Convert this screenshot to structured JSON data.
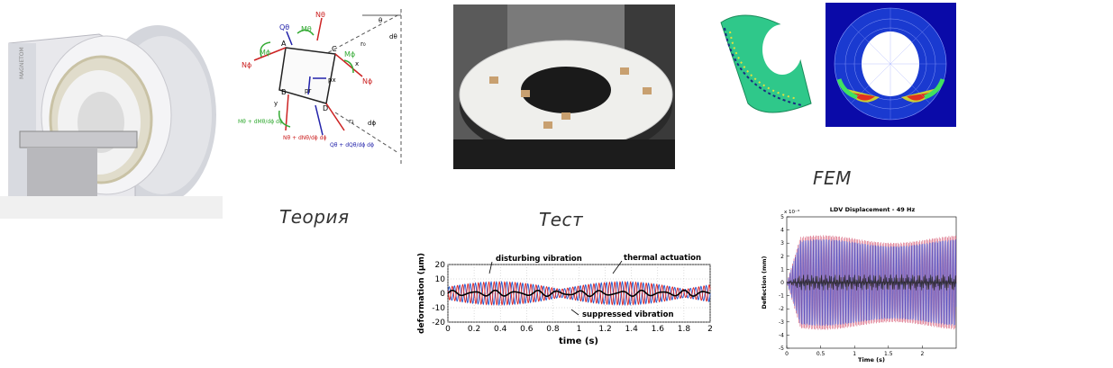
{
  "captions": {
    "theory": "Теория",
    "test": "Тест",
    "fem": "FEM"
  },
  "mri": {
    "brand_text": "MAGNETOM"
  },
  "theory_diagram": {
    "labels": {
      "Q_theta": "Qθ",
      "M_theta": "Mθ",
      "N_phi": "Nϕ",
      "M_phi": "Mϕ",
      "N_theta": "Nθ",
      "A": "A",
      "B": "B",
      "C": "C",
      "D": "D",
      "x": "x",
      "y": "y",
      "z": "z",
      "p_r": "pr",
      "p_x": "px",
      "r0": "r₀",
      "r1": "r₁",
      "theta": "θ",
      "d_theta": "dθ",
      "d_phi": "dϕ",
      "N_theta_dN": "Nθ + dNθ/dϕ dϕ",
      "M_theta_dM": "Mθ + dMθ/dϕ dϕ",
      "Q_theta_dQ": "Qθ + dQθ/dϕ dϕ"
    }
  },
  "chart_data": [
    {
      "type": "line",
      "title": "",
      "xlabel": "time (s)",
      "ylabel": "deformation (µm)",
      "xlim": [
        0,
        2
      ],
      "ylim": [
        -20,
        20
      ],
      "x_ticks": [
        "0",
        "0.2",
        "0.4",
        "0.6",
        "0.8",
        "1",
        "1.2",
        "1.4",
        "1.6",
        "1.8",
        "2"
      ],
      "y_ticks": [
        "20",
        "10",
        "0",
        "-10",
        "-20"
      ],
      "annotations": [
        "disturbing vibration",
        "thermal actuation",
        "suppressed vibration"
      ],
      "series": [
        {
          "name": "disturbing vibration",
          "color": "#2255cc",
          "frequency_hz": 25,
          "amplitude": 8,
          "modulation_period_s": 0.95
        },
        {
          "name": "thermal actuation",
          "color": "#dd2222",
          "frequency_hz": 25,
          "amplitude": 8,
          "modulation_period_s": 0.95
        },
        {
          "name": "suppressed vibration",
          "color": "#000000",
          "frequency_hz": 25,
          "amplitude": 1.5
        }
      ]
    },
    {
      "type": "line",
      "title": "LDV Displacement - 49 Hz",
      "xlabel": "Time (s)",
      "ylabel": "Deflection (mm)",
      "exponent_label": "x 10⁻³",
      "xlim": [
        0,
        2.5
      ],
      "ylim": [
        -5,
        5
      ],
      "x_ticks": [
        "0",
        "0.5",
        "1",
        "1.5",
        "2"
      ],
      "y_ticks": [
        "5",
        "4",
        "3",
        "2",
        "1",
        "0",
        "-1",
        "-2",
        "-3",
        "-4",
        "-5"
      ],
      "series": [
        {
          "color": "#d04060",
          "envelope": 3.6,
          "rise_time_s": 0.2
        },
        {
          "color": "#3344cc",
          "envelope": 3.3
        },
        {
          "color": "#222222",
          "envelope": 0.6
        }
      ]
    }
  ],
  "colors": {
    "fem_bg": "#0a0aa8",
    "fem_shell": "#2fc88a",
    "test_bg": "#2a2a2a"
  }
}
